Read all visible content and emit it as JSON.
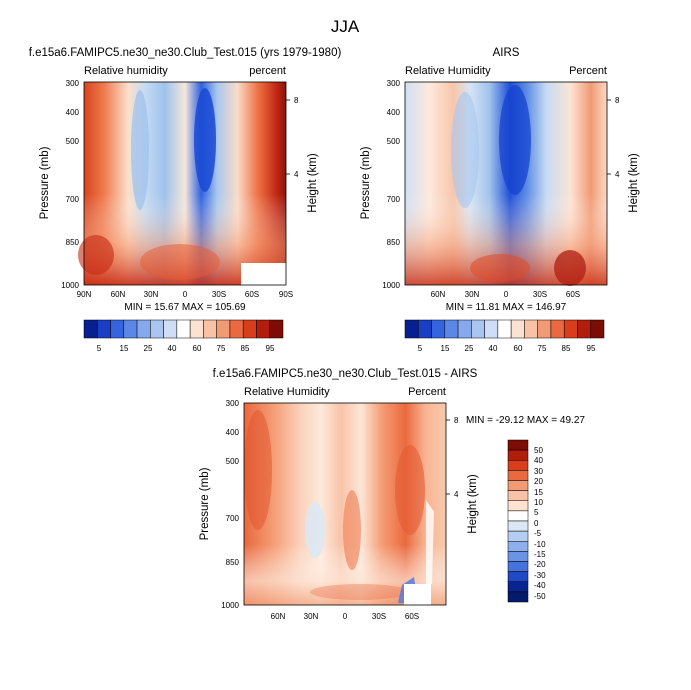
{
  "page_title": "JJA",
  "chart_data": [
    {
      "type": "heatmap",
      "title": "f.e15a6.FAMIPC5.ne30_ne30.Club_Test.015 (yrs 1979-1980)",
      "left_label": "Relative humidity",
      "right_label": "percent",
      "ylabel": "Pressure (mb)",
      "ylabel_right": "Height (km)",
      "x_ticks": [
        "90N",
        "60N",
        "30N",
        "0",
        "30S",
        "60S",
        "90S"
      ],
      "y_ticks": [
        "300",
        "400",
        "500",
        "700",
        "850",
        "1000"
      ],
      "height_ticks": [
        "8",
        "4"
      ],
      "min_max": "MIN = 15.67  MAX = 105.69",
      "colorbar_labels": [
        "5",
        "15",
        "25",
        "40",
        "60",
        "75",
        "85",
        "95"
      ]
    },
    {
      "type": "heatmap",
      "title": "AIRS",
      "left_label": "Relative Humidity",
      "right_label": "Percent",
      "ylabel": "Pressure (mb)",
      "ylabel_right": "Height (km)",
      "x_ticks": [
        "60N",
        "30N",
        "0",
        "30S",
        "60S"
      ],
      "y_ticks": [
        "300",
        "400",
        "500",
        "700",
        "850",
        "1000"
      ],
      "height_ticks": [
        "8",
        "4"
      ],
      "min_max": "MIN = 11.81  MAX = 146.97",
      "colorbar_labels": [
        "5",
        "15",
        "25",
        "40",
        "60",
        "75",
        "85",
        "95"
      ]
    },
    {
      "type": "heatmap",
      "title": "f.e15a6.FAMIPC5.ne30_ne30.Club_Test.015 - AIRS",
      "left_label": "Relative Humidity",
      "right_label": "Percent",
      "ylabel": "Pressure (mb)",
      "ylabel_right": "Height (km)",
      "x_ticks": [
        "60N",
        "30N",
        "0",
        "30S",
        "60S"
      ],
      "y_ticks": [
        "300",
        "400",
        "500",
        "700",
        "850",
        "1000"
      ],
      "height_ticks": [
        "8",
        "4"
      ],
      "min_max": "MIN = -29.12  MAX =  49.27",
      "colorbar_labels": [
        "50",
        "40",
        "30",
        "20",
        "15",
        "10",
        "5",
        "0",
        "-5",
        "-10",
        "-15",
        "-20",
        "-30",
        "-40",
        "-50"
      ]
    }
  ]
}
